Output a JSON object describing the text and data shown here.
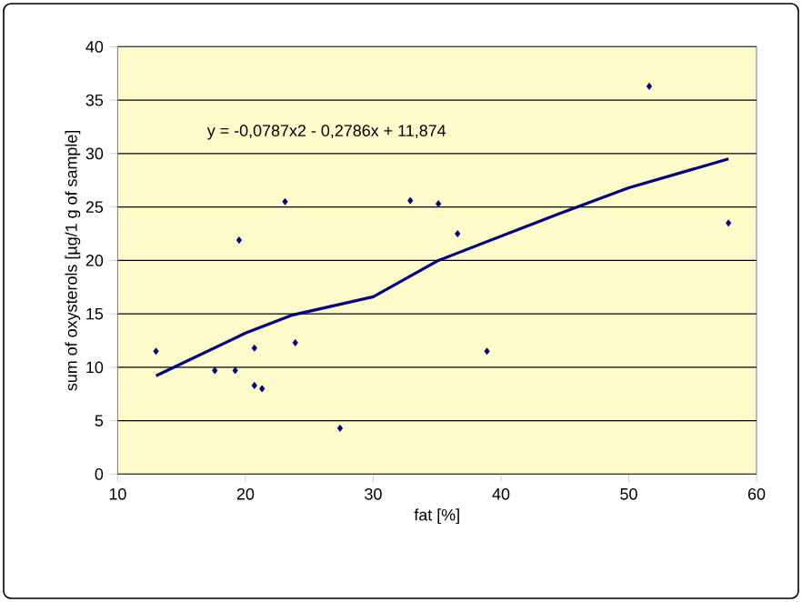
{
  "chart_data": {
    "type": "scatter",
    "xlabel": "fat [%]",
    "ylabel": "sum of oxysterols [µg/1 g of sample]",
    "annotations": [
      "y = -0,0787x2 - 0,2786x + 11,874"
    ],
    "xlim": [
      10,
      60
    ],
    "xticks": [
      10,
      20,
      30,
      40,
      50,
      60
    ],
    "ylim": [
      0,
      40
    ],
    "yticks": [
      0,
      5,
      10,
      15,
      20,
      25,
      30,
      35,
      40
    ],
    "grid": "y",
    "marker": "diamond",
    "series": [
      {
        "color": "#000080",
        "x": [
          13.0,
          17.6,
          19.2,
          19.5,
          20.7,
          20.7,
          21.3,
          23.1,
          23.9,
          27.4,
          32.9,
          35.1,
          36.6,
          38.9,
          51.6,
          57.8
        ],
        "values": [
          11.5,
          9.7,
          9.7,
          21.9,
          11.8,
          8.3,
          8.0,
          25.5,
          12.3,
          4.3,
          25.6,
          25.3,
          22.5,
          11.5,
          36.3,
          23.5
        ]
      },
      {
        "type": "line",
        "color": "#000080",
        "marker": "none",
        "x": [
          13.0,
          20,
          23.7,
          30,
          35.1,
          44.6,
          50,
          57.8
        ],
        "values": [
          9.2,
          13.2,
          14.9,
          16.6,
          20.0,
          24.4,
          26.8,
          29.5
        ]
      }
    ]
  }
}
